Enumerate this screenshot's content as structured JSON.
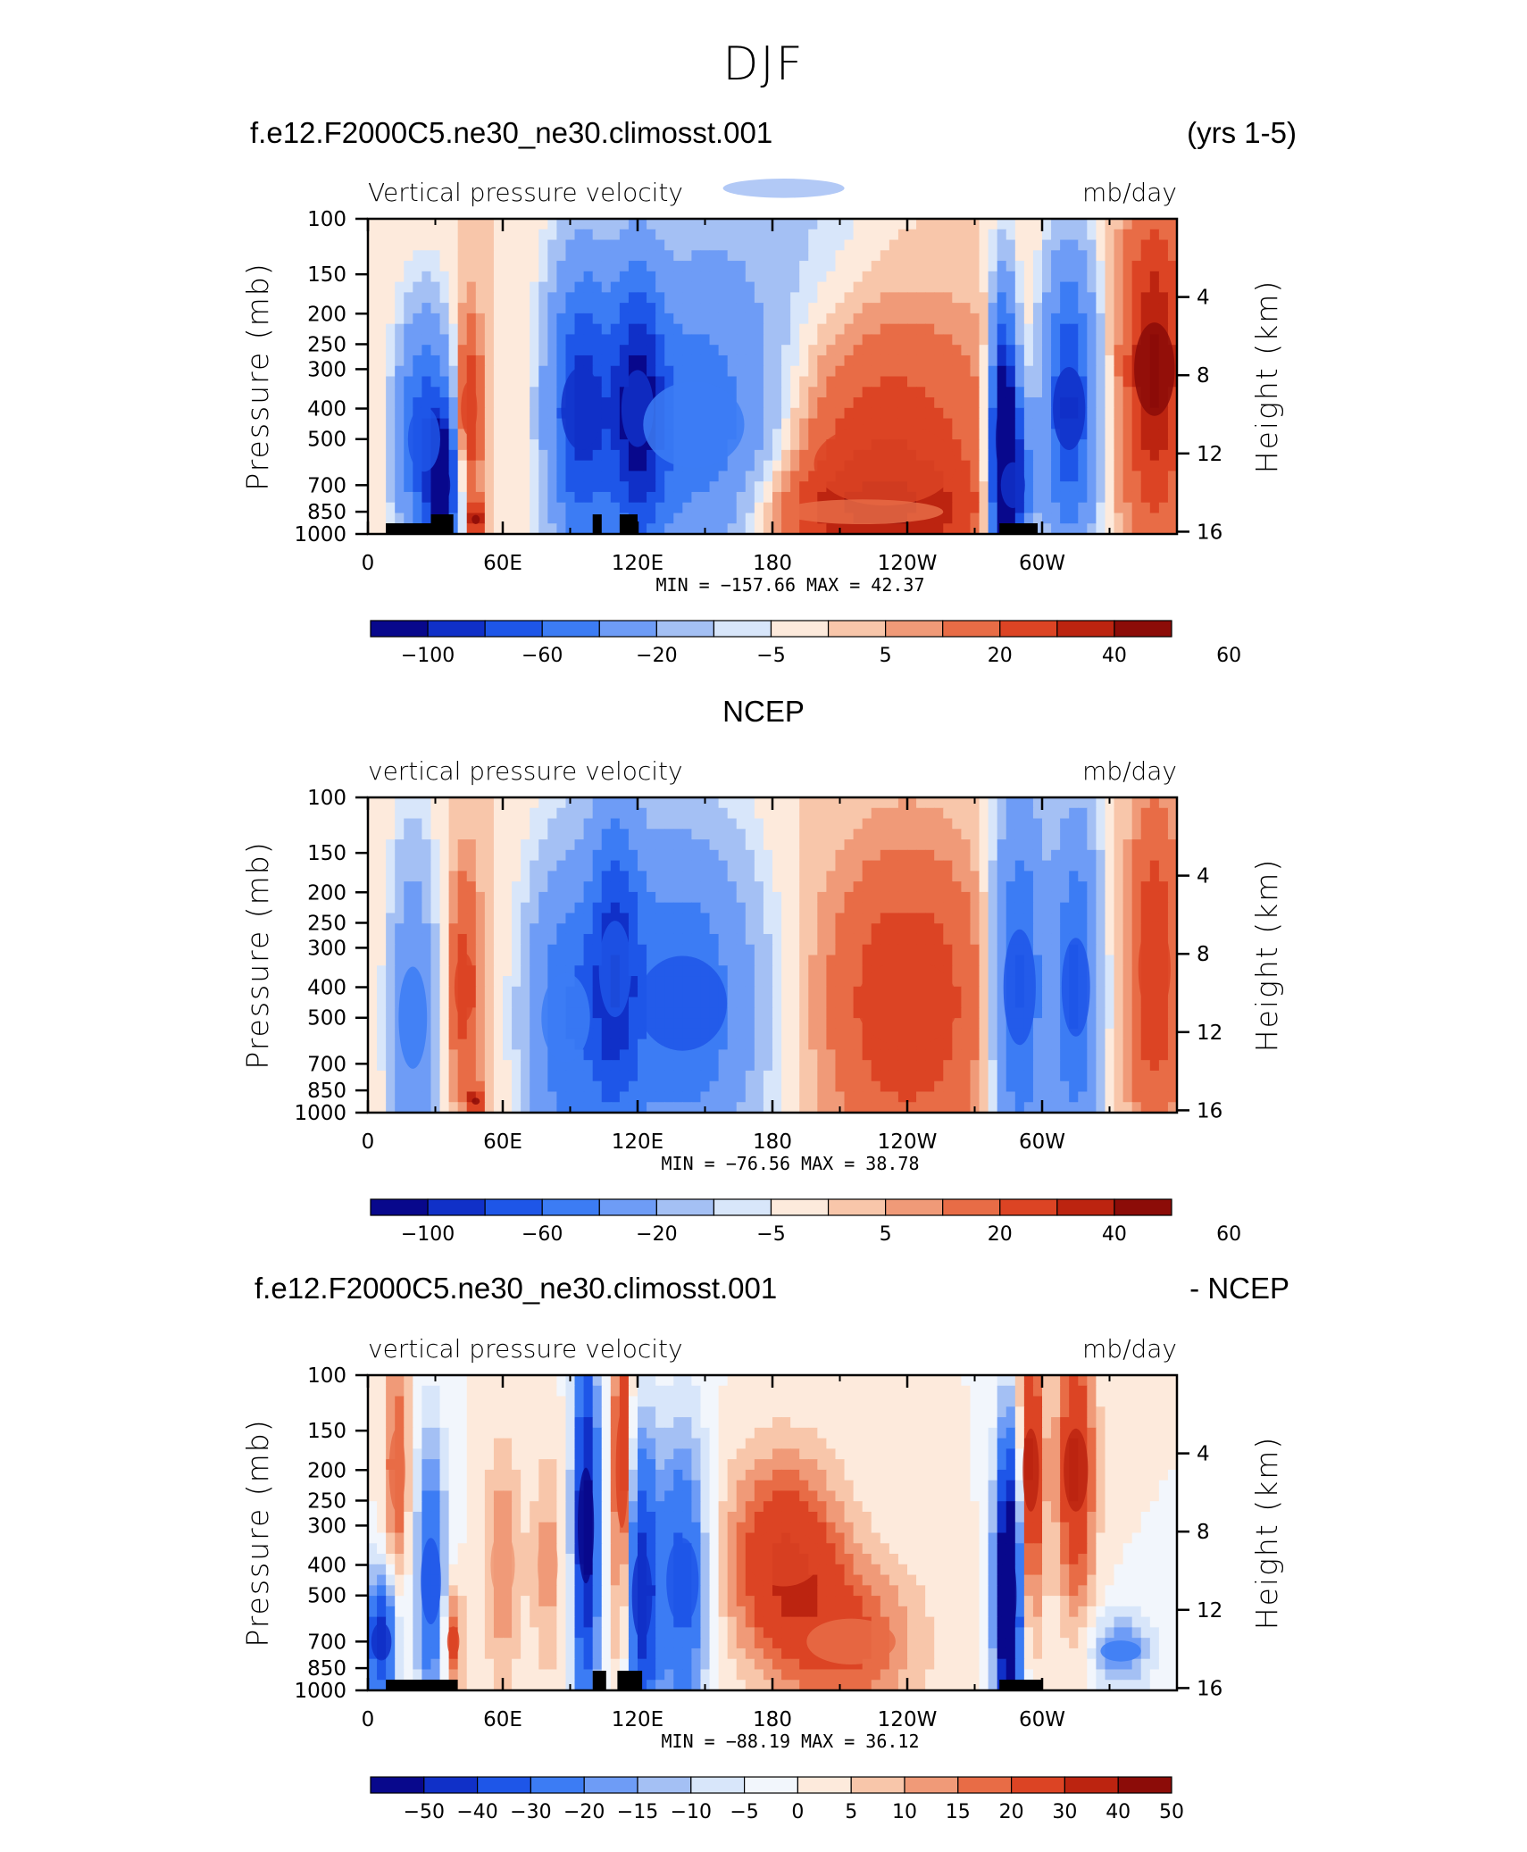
{
  "page": {
    "title": "DJF"
  },
  "colors": {
    "palette_model": [
      "#08088c",
      "#1030c8",
      "#1e56e8",
      "#3c7cf4",
      "#6e9cf6",
      "#a4c0f4",
      "#d8e6fa",
      "#fdeadc",
      "#f8c6aa",
      "#f09a78",
      "#e86c46",
      "#dc4424",
      "#bc2410",
      "#8c0c08"
    ],
    "palette_diff": [
      "#08088c",
      "#1030c8",
      "#1e56e8",
      "#3c7cf4",
      "#6e9cf6",
      "#a4c0f4",
      "#d8e6fa",
      "#f2f6fc",
      "#fdeadc",
      "#f8c6aa",
      "#f09a78",
      "#e86c46",
      "#dc4424",
      "#bc2410",
      "#8c0c08"
    ]
  },
  "panels": [
    {
      "left_title": "f.e12.F2000C5.ne30_ne30.climosst.001",
      "right_title": "(yrs 1-5)",
      "center_title": "",
      "left_subtitle": "Vertical pressure velocity",
      "right_subtitle": "mb/day",
      "y_left_label": "Pressure (mb)",
      "y_right_label": "Height (km)",
      "stats": "MIN = −157.66   MAX =  42.37",
      "masked_lon_ranges": [
        [
          8,
          32
        ],
        [
          28,
          38
        ],
        [
          100,
          104
        ],
        [
          112,
          120
        ],
        [
          281,
          298
        ]
      ]
    },
    {
      "left_title": "",
      "right_title": "",
      "center_title": "NCEP",
      "left_subtitle": "vertical pressure velocity",
      "right_subtitle": "mb/day",
      "y_left_label": "Pressure (mb)",
      "y_right_label": "Height (km)",
      "stats": "MIN = −76.56   MAX =  38.78",
      "masked_lon_ranges": []
    },
    {
      "left_title": "f.e12.F2000C5.ne30_ne30.climosst.001",
      "right_title": "- NCEP",
      "center_title": "",
      "left_subtitle": "vertical pressure velocity",
      "right_subtitle": "mb/day",
      "y_left_label": "Pressure (mb)",
      "y_right_label": "Height (km)",
      "stats": "MIN = −88.19   MAX =  36.12",
      "masked_lon_ranges": [
        [
          8,
          28
        ],
        [
          26,
          40
        ],
        [
          100,
          106
        ],
        [
          111,
          122
        ],
        [
          281,
          300
        ]
      ]
    }
  ],
  "chart_data": [
    {
      "type": "contour",
      "title": "f.e12.F2000C5.ne30_ne30.climosst.001 (yrs 1-5)",
      "variable": "Vertical pressure velocity",
      "units": "mb/day",
      "xlabel": "",
      "ylabel": "Pressure (mb)",
      "y2label": "Height (km)",
      "x_ticks": [
        "0",
        "60E",
        "120E",
        "180",
        "120W",
        "60W"
      ],
      "x_tick_values": [
        0,
        60,
        120,
        180,
        240,
        300
      ],
      "xlim": [
        0,
        360
      ],
      "y_ticks": [
        "100",
        "150",
        "200",
        "250",
        "300",
        "400",
        "500",
        "700",
        "850",
        "1000"
      ],
      "y_tick_values": [
        100,
        150,
        200,
        250,
        300,
        400,
        500,
        700,
        850,
        1000
      ],
      "ylim": [
        1000,
        100
      ],
      "y2_ticks": [
        "16",
        "12",
        "8",
        "4"
      ],
      "y2_tick_values": [
        16,
        12,
        8,
        4
      ],
      "colorbar_levels": [
        -120,
        -100,
        -80,
        -60,
        -40,
        -20,
        -10,
        -5,
        0,
        5,
        10,
        20,
        30,
        40,
        60
      ],
      "colorbar_labels": [
        "−100",
        "−60",
        "−20",
        "−5",
        "5",
        "20",
        "40",
        "60"
      ],
      "min": -157.66,
      "max": 42.37,
      "features": [
        {
          "lon": 25,
          "p": 500,
          "value": -75,
          "lon_width": 8,
          "p_width": 300
        },
        {
          "lon": 33,
          "p": 700,
          "value": -120,
          "lon_width": 4,
          "p_width": 250
        },
        {
          "lon": 45,
          "p": 400,
          "value": 30,
          "lon_width": 4,
          "p_width": 200
        },
        {
          "lon": 48,
          "p": 900,
          "value": 55,
          "lon_width": 2,
          "p_width": 80
        },
        {
          "lon": 95,
          "p": 400,
          "value": -85,
          "lon_width": 10,
          "p_width": 300
        },
        {
          "lon": 120,
          "p": 400,
          "value": -85,
          "lon_width": 8,
          "p_width": 280
        },
        {
          "lon": 145,
          "p": 450,
          "value": -55,
          "lon_width": 25,
          "p_width": 350
        },
        {
          "lon": 185,
          "p": 80,
          "value": -12,
          "lon_width": 30,
          "p_width": 80
        },
        {
          "lon": 230,
          "p": 600,
          "value": 30,
          "lon_width": 35,
          "p_width": 450
        },
        {
          "lon": 220,
          "p": 850,
          "value": 18,
          "lon_width": 40,
          "p_width": 200
        },
        {
          "lon": 283,
          "p": 500,
          "value": -130,
          "lon_width": 4,
          "p_width": 350
        },
        {
          "lon": 287,
          "p": 700,
          "value": -90,
          "lon_width": 6,
          "p_width": 300
        },
        {
          "lon": 312,
          "p": 400,
          "value": -85,
          "lon_width": 8,
          "p_width": 300
        },
        {
          "lon": 350,
          "p": 300,
          "value": 42,
          "lon_width": 10,
          "p_width": 250
        }
      ]
    },
    {
      "type": "contour",
      "title": "NCEP",
      "variable": "vertical pressure velocity",
      "units": "mb/day",
      "xlabel": "",
      "ylabel": "Pressure (mb)",
      "y2label": "Height (km)",
      "x_ticks": [
        "0",
        "60E",
        "120E",
        "180",
        "120W",
        "60W"
      ],
      "x_tick_values": [
        0,
        60,
        120,
        180,
        240,
        300
      ],
      "xlim": [
        0,
        360
      ],
      "y_ticks": [
        "100",
        "150",
        "200",
        "250",
        "300",
        "400",
        "500",
        "700",
        "850",
        "1000"
      ],
      "y_tick_values": [
        100,
        150,
        200,
        250,
        300,
        400,
        500,
        700,
        850,
        1000
      ],
      "ylim": [
        1000,
        100
      ],
      "y2_ticks": [
        "16",
        "12",
        "8",
        "4"
      ],
      "y2_tick_values": [
        16,
        12,
        8,
        4
      ],
      "colorbar_levels": [
        -120,
        -100,
        -80,
        -60,
        -40,
        -20,
        -10,
        -5,
        0,
        5,
        10,
        20,
        30,
        40,
        60
      ],
      "colorbar_labels": [
        "−100",
        "−60",
        "−20",
        "−5",
        "5",
        "20",
        "40",
        "60"
      ],
      "min": -76.56,
      "max": 38.78,
      "features": [
        {
          "lon": 20,
          "p": 500,
          "value": -40,
          "lon_width": 7,
          "p_width": 450
        },
        {
          "lon": 43,
          "p": 400,
          "value": 25,
          "lon_width": 5,
          "p_width": 250
        },
        {
          "lon": 48,
          "p": 920,
          "value": 45,
          "lon_width": 2,
          "p_width": 60
        },
        {
          "lon": 88,
          "p": 500,
          "value": -55,
          "lon_width": 12,
          "p_width": 400
        },
        {
          "lon": 110,
          "p": 350,
          "value": -70,
          "lon_width": 8,
          "p_width": 300
        },
        {
          "lon": 140,
          "p": 450,
          "value": -60,
          "lon_width": 22,
          "p_width": 380
        },
        {
          "lon": 240,
          "p": 450,
          "value": 30,
          "lon_width": 25,
          "p_width": 350
        },
        {
          "lon": 290,
          "p": 400,
          "value": -65,
          "lon_width": 8,
          "p_width": 400
        },
        {
          "lon": 315,
          "p": 400,
          "value": -65,
          "lon_width": 7,
          "p_width": 350
        },
        {
          "lon": 350,
          "p": 350,
          "value": 30,
          "lon_width": 8,
          "p_width": 300
        }
      ]
    },
    {
      "type": "contour",
      "title": "f.e12.F2000C5.ne30_ne30.climosst.001 - NCEP",
      "variable": "vertical pressure velocity",
      "units": "mb/day",
      "xlabel": "",
      "ylabel": "Pressure (mb)",
      "y2label": "Height (km)",
      "x_ticks": [
        "0",
        "60E",
        "120E",
        "180",
        "120W",
        "60W"
      ],
      "x_tick_values": [
        0,
        60,
        120,
        180,
        240,
        300
      ],
      "xlim": [
        0,
        360
      ],
      "y_ticks": [
        "100",
        "150",
        "200",
        "250",
        "300",
        "400",
        "500",
        "700",
        "850",
        "1000"
      ],
      "y_tick_values": [
        100,
        150,
        200,
        250,
        300,
        400,
        500,
        700,
        850,
        1000
      ],
      "ylim": [
        1000,
        100
      ],
      "y2_ticks": [
        "16",
        "12",
        "8",
        "4"
      ],
      "y2_tick_values": [
        16,
        12,
        8,
        4
      ],
      "colorbar_levels": [
        -60,
        -50,
        -40,
        -30,
        -20,
        -15,
        -10,
        -5,
        0,
        5,
        10,
        15,
        20,
        30,
        40,
        50
      ],
      "colorbar_labels": [
        "−50",
        "−40",
        "−30",
        "−20",
        "−15",
        "−10",
        "−5",
        "0",
        "5",
        "10",
        "15",
        "20",
        "30",
        "40",
        "50"
      ],
      "min": -88.19,
      "max": 36.12,
      "features": [
        {
          "lon": 6,
          "p": 700,
          "value": -45,
          "lon_width": 5,
          "p_width": 250
        },
        {
          "lon": 13,
          "p": 200,
          "value": 20,
          "lon_width": 4,
          "p_width": 150
        },
        {
          "lon": 28,
          "p": 450,
          "value": -30,
          "lon_width": 5,
          "p_width": 350
        },
        {
          "lon": 38,
          "p": 700,
          "value": 25,
          "lon_width": 3,
          "p_width": 200
        },
        {
          "lon": 60,
          "p": 400,
          "value": 15,
          "lon_width": 6,
          "p_width": 250
        },
        {
          "lon": 80,
          "p": 400,
          "value": 12,
          "lon_width": 5,
          "p_width": 250
        },
        {
          "lon": 97,
          "p": 300,
          "value": -55,
          "lon_width": 4,
          "p_width": 300
        },
        {
          "lon": 113,
          "p": 200,
          "value": 30,
          "lon_width": 3,
          "p_width": 200
        },
        {
          "lon": 122,
          "p": 500,
          "value": -45,
          "lon_width": 5,
          "p_width": 400
        },
        {
          "lon": 140,
          "p": 450,
          "value": -35,
          "lon_width": 8,
          "p_width": 350
        },
        {
          "lon": 185,
          "p": 380,
          "value": 30,
          "lon_width": 18,
          "p_width": 200
        },
        {
          "lon": 215,
          "p": 700,
          "value": 20,
          "lon_width": 22,
          "p_width": 300
        },
        {
          "lon": 285,
          "p": 500,
          "value": -80,
          "lon_width": 4,
          "p_width": 400
        },
        {
          "lon": 295,
          "p": 200,
          "value": 35,
          "lon_width": 4,
          "p_width": 150
        },
        {
          "lon": 315,
          "p": 200,
          "value": 32,
          "lon_width": 6,
          "p_width": 150
        },
        {
          "lon": 335,
          "p": 750,
          "value": -20,
          "lon_width": 10,
          "p_width": 150
        }
      ]
    }
  ]
}
